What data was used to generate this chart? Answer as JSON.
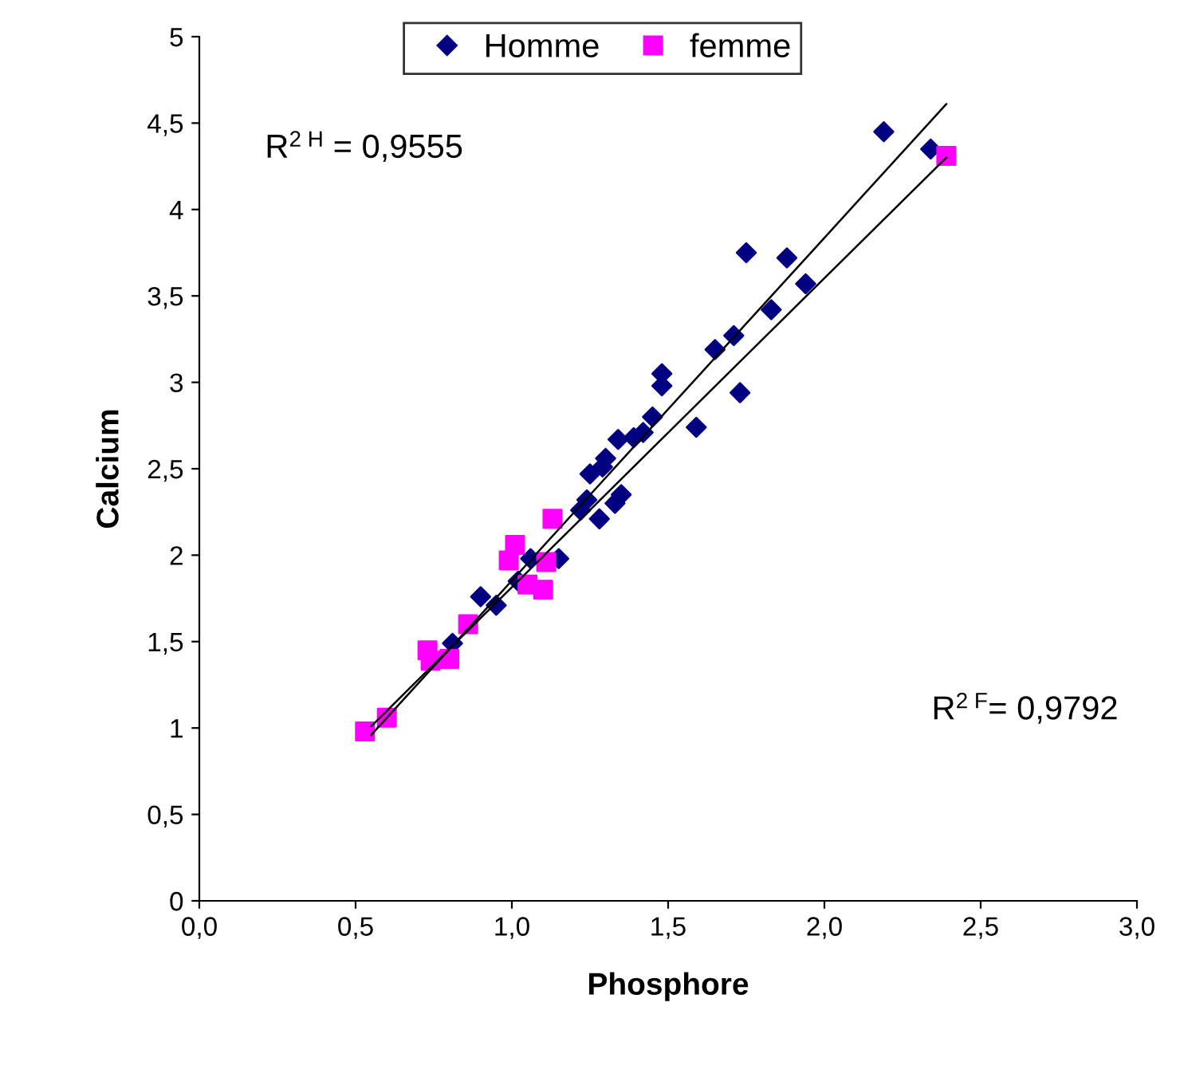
{
  "chart_data": {
    "type": "scatter",
    "xlabel": "Phosphore",
    "ylabel": "Calcium",
    "xlim": [
      0,
      3
    ],
    "ylim": [
      0,
      5
    ],
    "xticks": [
      {
        "value": 0,
        "label": "0,0"
      },
      {
        "value": 0.5,
        "label": "0,5"
      },
      {
        "value": 1,
        "label": "1,0"
      },
      {
        "value": 1.5,
        "label": "1,5"
      },
      {
        "value": 2,
        "label": "2,0"
      },
      {
        "value": 2.5,
        "label": "2,5"
      },
      {
        "value": 3,
        "label": "3,0"
      }
    ],
    "yticks": [
      0,
      {
        "value": 0.5,
        "label": "0,5"
      },
      1,
      {
        "value": 1.5,
        "label": "1,5"
      },
      2,
      {
        "value": 2.5,
        "label": "2,5"
      },
      3,
      {
        "value": 3.5,
        "label": "3,5"
      },
      4,
      {
        "value": 4.5,
        "label": "4,5"
      },
      5
    ],
    "grid": false,
    "legend": "top",
    "annotations": [
      "R$^{2 H}$ = 0,9555",
      "R$^{2 F}$= 0,9792"
    ],
    "series": [
      {
        "name": "Homme",
        "color": "#000080",
        "marker": "diamond",
        "x": [
          2.19,
          2.34,
          1.75,
          1.88,
          1.94,
          1.83,
          1.71,
          1.65,
          1.48,
          1.48,
          1.73,
          1.59,
          1.45,
          1.42,
          1.39,
          1.34,
          1.3,
          1.29,
          1.25,
          1.35,
          1.33,
          1.28,
          1.24,
          1.22,
          1.15,
          1.06,
          0.9,
          0.95,
          0.81,
          1.02
        ],
        "values": [
          4.45,
          4.35,
          3.75,
          3.72,
          3.57,
          3.42,
          3.27,
          3.19,
          3.05,
          2.98,
          2.94,
          2.74,
          2.8,
          2.71,
          2.68,
          2.67,
          2.56,
          2.51,
          2.47,
          2.35,
          2.3,
          2.21,
          2.32,
          2.26,
          1.98,
          1.98,
          1.76,
          1.71,
          1.49,
          1.85
        ]
      },
      {
        "name": "femme",
        "color": "#ff00ff",
        "marker": "square",
        "x": [
          2.39,
          1.13,
          1.01,
          0.99,
          1.11,
          1.05,
          1.1,
          0.86,
          0.73,
          0.8,
          0.74,
          0.6,
          0.53
        ],
        "values": [
          4.31,
          2.21,
          2.06,
          1.97,
          1.96,
          1.83,
          1.8,
          1.6,
          1.45,
          1.4,
          1.39,
          1.06,
          0.98
        ]
      },
      {
        "type": "line",
        "color": "#000000",
        "marker": "none",
        "x": [
          0.55,
          2.39
        ],
        "values": [
          0.96,
          4.61
        ]
      },
      {
        "type": "line",
        "color": "#000000",
        "marker": "none",
        "x": [
          0.55,
          2.39
        ],
        "values": [
          1.01,
          4.3
        ]
      }
    ]
  }
}
